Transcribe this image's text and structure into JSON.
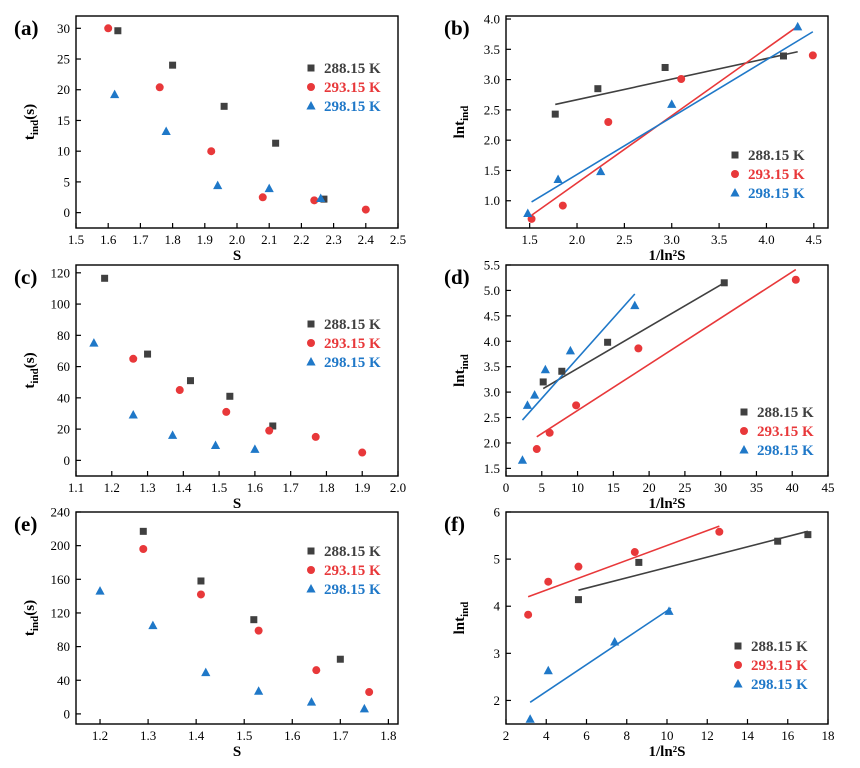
{
  "chart_data": [
    {
      "panel": "(a)",
      "type": "scatter",
      "xlabel": "S",
      "ylabel": "t",
      "ylabel_sub": "ind",
      "ylabel_suffix": "(s)",
      "xlim": [
        1.5,
        2.5
      ],
      "ylim": [
        -2.5,
        32
      ],
      "xticks": [
        "1.5",
        "1.6",
        "1.7",
        "1.8",
        "1.9",
        "2.0",
        "2.1",
        "2.2",
        "2.3",
        "2.4",
        "2.5"
      ],
      "xtick_values": [
        1.5,
        1.6,
        1.7,
        1.8,
        1.9,
        2.0,
        2.1,
        2.2,
        2.3,
        2.4,
        2.5
      ],
      "yticks": [
        "0",
        "5",
        "10",
        "15",
        "20",
        "25",
        "30"
      ],
      "ytick_values": [
        0,
        5,
        10,
        15,
        20,
        25,
        30
      ],
      "legend_position": "center-right",
      "series": [
        {
          "name": "288.15 K",
          "color": "#404040",
          "marker": "square",
          "x": [
            1.63,
            1.8,
            1.96,
            2.12,
            2.27
          ],
          "y": [
            29.6,
            24.0,
            17.3,
            11.3,
            2.2
          ]
        },
        {
          "name": "293.15 K",
          "color": "#e8383a",
          "marker": "circle",
          "x": [
            1.6,
            1.76,
            1.92,
            2.08,
            2.24,
            2.4
          ],
          "y": [
            30.0,
            20.4,
            10.0,
            2.5,
            2.0,
            0.5
          ]
        },
        {
          "name": "298.15 K",
          "color": "#1f78c8",
          "marker": "triangle",
          "x": [
            1.62,
            1.78,
            1.94,
            2.1,
            2.26
          ],
          "y": [
            19.2,
            13.2,
            4.4,
            3.9,
            2.3
          ]
        }
      ]
    },
    {
      "panel": "(b)",
      "type": "scatter",
      "xlabel": "1/ln²S",
      "ylabel": "lnt",
      "ylabel_sub": "ind",
      "ylabel_suffix": "",
      "xlim": [
        1.25,
        4.65
      ],
      "ylim": [
        0.55,
        4.05
      ],
      "xticks": [
        "1.5",
        "2.0",
        "2.5",
        "3.0",
        "3.5",
        "4.0",
        "4.5"
      ],
      "xtick_values": [
        1.5,
        2.0,
        2.5,
        3.0,
        3.5,
        4.0,
        4.5
      ],
      "yticks": [
        "1.0",
        "1.5",
        "2.0",
        "2.5",
        "3.0",
        "3.5",
        "4.0"
      ],
      "ytick_values": [
        1.0,
        1.5,
        2.0,
        2.5,
        3.0,
        3.5,
        4.0
      ],
      "legend_position": "bottom-right",
      "series": [
        {
          "name": "288.15 K",
          "color": "#404040",
          "marker": "square",
          "x": [
            1.77,
            2.22,
            2.93,
            4.18
          ],
          "y": [
            2.43,
            2.85,
            3.2,
            3.39
          ],
          "fit": [
            [
              1.77,
              2.59
            ],
            [
              4.33,
              3.46
            ]
          ]
        },
        {
          "name": "293.15 K",
          "color": "#e8383a",
          "marker": "circle",
          "x": [
            1.52,
            1.85,
            2.33,
            3.1,
            4.49
          ],
          "y": [
            0.7,
            0.92,
            2.3,
            3.01,
            3.4
          ],
          "fit": [
            [
              1.52,
              0.76
            ],
            [
              4.33,
              3.88
            ]
          ]
        },
        {
          "name": "298.15 K",
          "color": "#1f78c8",
          "marker": "triangle",
          "x": [
            1.48,
            1.8,
            2.25,
            3.0,
            4.33
          ],
          "y": [
            0.79,
            1.35,
            1.48,
            2.59,
            3.87
          ],
          "fit": [
            [
              1.52,
              0.98
            ],
            [
              4.49,
              3.79
            ]
          ]
        }
      ]
    },
    {
      "panel": "(c)",
      "type": "scatter",
      "xlabel": "S",
      "ylabel": "t",
      "ylabel_sub": "ind",
      "ylabel_suffix": "(s)",
      "xlim": [
        1.1,
        2.0
      ],
      "ylim": [
        -10,
        125
      ],
      "xticks": [
        "1.1",
        "1.2",
        "1.3",
        "1.4",
        "1.5",
        "1.6",
        "1.7",
        "1.8",
        "1.9",
        "2.0"
      ],
      "xtick_values": [
        1.1,
        1.2,
        1.3,
        1.4,
        1.5,
        1.6,
        1.7,
        1.8,
        1.9,
        2.0
      ],
      "yticks": [
        "0",
        "20",
        "40",
        "60",
        "80",
        "100",
        "120"
      ],
      "ytick_values": [
        0,
        20,
        40,
        60,
        80,
        100,
        120
      ],
      "legend_position": "center-right",
      "series": [
        {
          "name": "288.15 K",
          "color": "#404040",
          "marker": "square",
          "x": [
            1.18,
            1.3,
            1.42,
            1.53,
            1.65
          ],
          "y": [
            116.5,
            68.0,
            51.0,
            41.0,
            22.0
          ]
        },
        {
          "name": "293.15 K",
          "color": "#e8383a",
          "marker": "circle",
          "x": [
            1.26,
            1.39,
            1.52,
            1.64,
            1.77,
            1.9
          ],
          "y": [
            65.0,
            45.0,
            31.0,
            19.0,
            15.0,
            5.0
          ]
        },
        {
          "name": "298.15 K",
          "color": "#1f78c8",
          "marker": "triangle",
          "x": [
            1.15,
            1.26,
            1.37,
            1.49,
            1.6
          ],
          "y": [
            75.0,
            29.0,
            16.0,
            9.5,
            7.0
          ]
        }
      ]
    },
    {
      "panel": "(d)",
      "type": "scatter",
      "xlabel": "1/ln²S",
      "ylabel": "lnt",
      "ylabel_sub": "ind",
      "ylabel_suffix": "",
      "xlim": [
        0,
        45
      ],
      "ylim": [
        1.35,
        5.5
      ],
      "xticks": [
        "0",
        "5",
        "10",
        "15",
        "20",
        "25",
        "30",
        "35",
        "40",
        "45"
      ],
      "xtick_values": [
        0,
        5,
        10,
        15,
        20,
        25,
        30,
        35,
        40,
        45
      ],
      "yticks": [
        "1.5",
        "2.0",
        "2.5",
        "3.0",
        "3.5",
        "4.0",
        "4.5",
        "5.0",
        "5.5"
      ],
      "ytick_values": [
        1.5,
        2.0,
        2.5,
        3.0,
        3.5,
        4.0,
        4.5,
        5.0,
        5.5
      ],
      "legend_position": "bottom-right",
      "series": [
        {
          "name": "288.15 K",
          "color": "#404040",
          "marker": "square",
          "x": [
            5.2,
            7.8,
            14.2,
            30.5
          ],
          "y": [
            3.2,
            3.41,
            3.98,
            5.15
          ],
          "fit": [
            [
              5.2,
              3.07
            ],
            [
              30.5,
              5.15
            ]
          ]
        },
        {
          "name": "293.15 K",
          "color": "#e8383a",
          "marker": "circle",
          "x": [
            4.3,
            6.1,
            9.8,
            18.5,
            40.5
          ],
          "y": [
            1.88,
            2.2,
            2.74,
            3.86,
            5.21
          ],
          "fit": [
            [
              4.3,
              2.12
            ],
            [
              40.5,
              5.41
            ]
          ]
        },
        {
          "name": "298.15 K",
          "color": "#1f78c8",
          "marker": "triangle",
          "x": [
            2.3,
            3.0,
            4.0,
            5.5,
            9.0,
            18.0
          ],
          "y": [
            1.66,
            2.74,
            2.94,
            3.44,
            3.81,
            4.7
          ],
          "fit": [
            [
              2.3,
              2.45
            ],
            [
              18.0,
              4.93
            ]
          ]
        }
      ]
    },
    {
      "panel": "(e)",
      "type": "scatter",
      "xlabel": "S",
      "ylabel": "t",
      "ylabel_sub": "ind",
      "ylabel_suffix": "(s)",
      "xlim": [
        1.15,
        1.82
      ],
      "ylim": [
        -12,
        240
      ],
      "xticks": [
        "1.2",
        "1.3",
        "1.4",
        "1.5",
        "1.6",
        "1.7",
        "1.8"
      ],
      "xtick_values": [
        1.2,
        1.3,
        1.4,
        1.5,
        1.6,
        1.7,
        1.8
      ],
      "yticks": [
        "0",
        "40",
        "80",
        "120",
        "160",
        "200",
        "240"
      ],
      "ytick_values": [
        0,
        40,
        80,
        120,
        160,
        200,
        240
      ],
      "legend_position": "center-right",
      "series": [
        {
          "name": "288.15 K",
          "color": "#404040",
          "marker": "square",
          "x": [
            1.29,
            1.41,
            1.52,
            1.7
          ],
          "y": [
            217,
            158,
            112,
            65
          ]
        },
        {
          "name": "293.15 K",
          "color": "#e8383a",
          "marker": "circle",
          "x": [
            1.29,
            1.41,
            1.53,
            1.65,
            1.76
          ],
          "y": [
            196,
            142,
            99,
            52,
            26
          ]
        },
        {
          "name": "298.15 K",
          "color": "#1f78c8",
          "marker": "triangle",
          "x": [
            1.2,
            1.31,
            1.42,
            1.53,
            1.64,
            1.75
          ],
          "y": [
            146,
            105,
            49,
            27,
            14,
            6
          ]
        }
      ]
    },
    {
      "panel": "(f)",
      "type": "scatter",
      "xlabel": "1/ln²S",
      "ylabel": "lnt",
      "ylabel_sub": "ind",
      "ylabel_suffix": "",
      "xlim": [
        2,
        18
      ],
      "ylim": [
        1.5,
        6.0
      ],
      "xticks": [
        "2",
        "4",
        "6",
        "8",
        "10",
        "12",
        "14",
        "16",
        "18"
      ],
      "xtick_values": [
        2,
        4,
        6,
        8,
        10,
        12,
        14,
        16,
        18
      ],
      "yticks": [
        "2",
        "3",
        "4",
        "5",
        "6"
      ],
      "ytick_values": [
        2,
        3,
        4,
        5,
        6
      ],
      "legend_position": "bottom-right",
      "series": [
        {
          "name": "288.15 K",
          "color": "#404040",
          "marker": "square",
          "x": [
            5.6,
            8.6,
            15.5,
            17.0
          ],
          "y": [
            4.14,
            4.93,
            5.38,
            5.52
          ],
          "fit": [
            [
              5.6,
              4.34
            ],
            [
              17.0,
              5.59
            ]
          ]
        },
        {
          "name": "293.15 K",
          "color": "#e8383a",
          "marker": "circle",
          "x": [
            3.1,
            4.1,
            5.6,
            8.4,
            12.6
          ],
          "y": [
            3.82,
            4.52,
            4.84,
            5.15,
            5.58
          ],
          "fit": [
            [
              3.1,
              4.2
            ],
            [
              12.6,
              5.7
            ]
          ]
        },
        {
          "name": "298.15 K",
          "color": "#1f78c8",
          "marker": "triangle",
          "x": [
            3.2,
            4.1,
            7.4,
            10.1
          ],
          "y": [
            1.6,
            2.63,
            3.24,
            3.89
          ],
          "fit": [
            [
              3.2,
              1.96
            ],
            [
              10.2,
              3.96
            ]
          ]
        }
      ]
    }
  ]
}
